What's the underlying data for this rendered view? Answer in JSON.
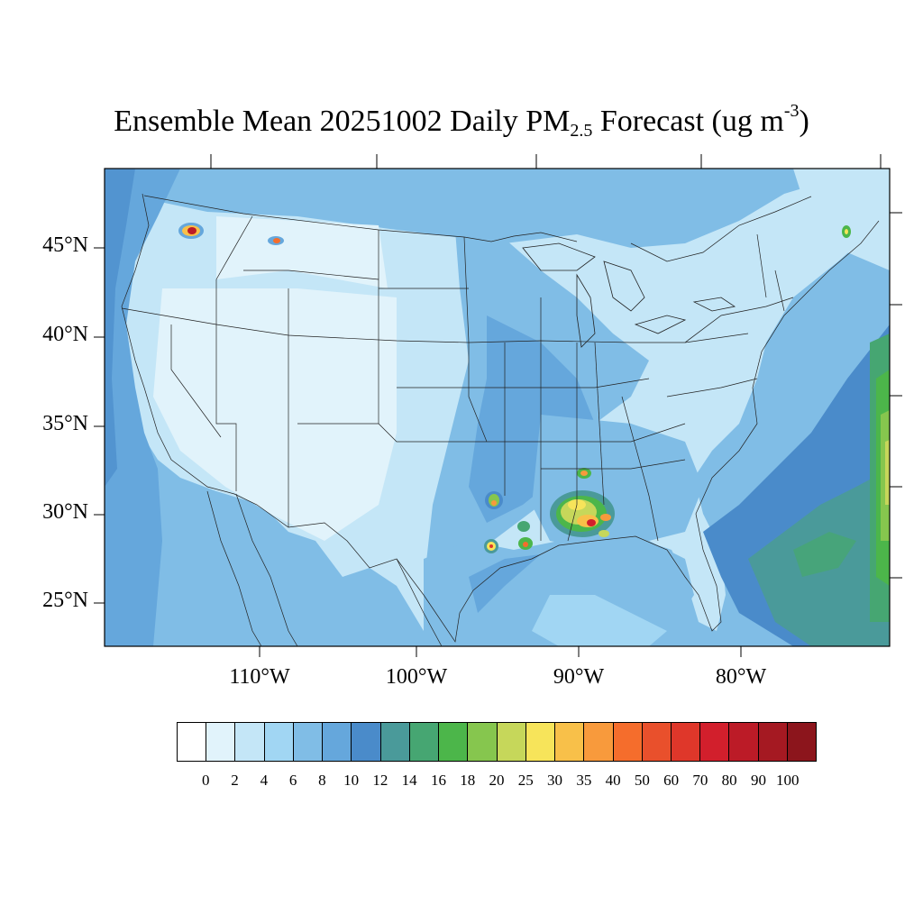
{
  "map": {
    "title": {
      "prefix": "Ensemble Mean 20251002 Daily PM",
      "sub": "2.5",
      "mid": " Forecast (ug m",
      "sup": "-3",
      "suffix": ")"
    },
    "lat_labels": [
      "45°N",
      "40°N",
      "35°N",
      "30°N",
      "25°N"
    ],
    "lon_labels": [
      "110°W",
      "100°W",
      "90°W",
      "80°W"
    ],
    "colorbar": {
      "colors": [
        "#ffffff",
        "#e1f3fb",
        "#c4e6f7",
        "#a1d6f3",
        "#80bde6",
        "#65a7dc",
        "#4a8bca",
        "#4a9a9a",
        "#46a672",
        "#4cb64a",
        "#86c64e",
        "#c6d75a",
        "#f7e45a",
        "#f8c049",
        "#f89a3c",
        "#f56d2c",
        "#e9502c",
        "#df372a",
        "#d21f2c",
        "#bc1b27",
        "#a51922",
        "#8c151c"
      ],
      "labels": [
        "0",
        "2",
        "4",
        "6",
        "8",
        "10",
        "12",
        "14",
        "16",
        "18",
        "20",
        "25",
        "30",
        "35",
        "40",
        "50",
        "60",
        "70",
        "80",
        "90",
        "100"
      ]
    }
  }
}
